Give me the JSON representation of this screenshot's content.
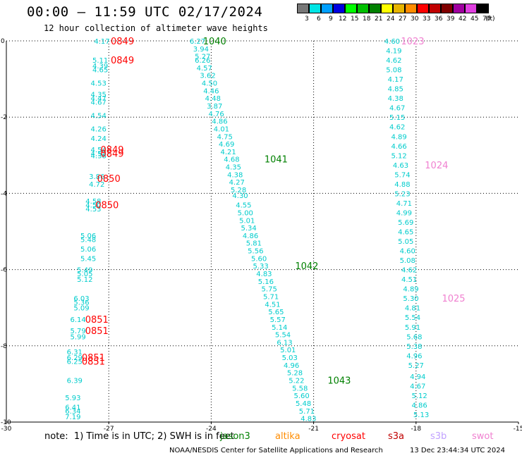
{
  "title": "00:00 – 11:59 UTC 02/17/2024",
  "subtitle": "12 hour collection of altimeter wave heights",
  "legend": {
    "unit": "(ft)",
    "bins": [
      {
        "label": "3",
        "color": "#777777"
      },
      {
        "label": "6",
        "color": "#00e5e5"
      },
      {
        "label": "9",
        "color": "#00a0ff"
      },
      {
        "label": "12",
        "color": "#0000e0"
      },
      {
        "label": "15",
        "color": "#00ff00"
      },
      {
        "label": "18",
        "color": "#00c000"
      },
      {
        "label": "21",
        "color": "#008000"
      },
      {
        "label": "24",
        "color": "#ffff00"
      },
      {
        "label": "27",
        "color": "#e6b400"
      },
      {
        "label": "30",
        "color": "#ff8c00"
      },
      {
        "label": "33",
        "color": "#ff0000"
      },
      {
        "label": "36",
        "color": "#c00000"
      },
      {
        "label": "39",
        "color": "#800000"
      },
      {
        "label": "42",
        "color": "#a000a0"
      },
      {
        "label": "45",
        "color": "#e040e0"
      },
      {
        "label": "70",
        "color": "#000000"
      }
    ]
  },
  "note": "note:  1) Time is in UTC; 2) SWH is in feet",
  "satellites": [
    {
      "name": "jason3",
      "color": "#008000"
    },
    {
      "name": "altika",
      "color": "#ff8c00"
    },
    {
      "name": "cryosat",
      "color": "#ff0000"
    },
    {
      "name": "s3a",
      "color": "#c00000"
    },
    {
      "name": "s3b",
      "color": "#c0a0ff"
    },
    {
      "name": "swot",
      "color": "#f080d0"
    }
  ],
  "footer_left": "NOAA/NESDIS Center for Satellite Applications and Research",
  "footer_right": "13 Dec 23:44:34 UTC 2024",
  "chart_data": {
    "type": "scatter",
    "xlim": [
      -30,
      -15
    ],
    "ylim": [
      -10,
      0
    ],
    "xticks": [
      "-30",
      "-27",
      "-24",
      "-21",
      "-18",
      "-15"
    ],
    "yticks": [
      "0",
      "-2",
      "-4",
      "-6",
      "-8",
      "-10"
    ],
    "grid": true,
    "wave_color": "#00cccc",
    "tracks": [
      {
        "name": "cryosat",
        "color": "#ff0000",
        "values": [
          {
            "x": -27.2,
            "y": 0.0,
            "v": "4.17"
          },
          {
            "x": -27.25,
            "y": -0.5,
            "v": "5.11"
          },
          {
            "x": -27.25,
            "y": -0.65,
            "v": "4.39"
          },
          {
            "x": -27.25,
            "y": -0.75,
            "v": "4.65"
          },
          {
            "x": -27.3,
            "y": -1.1,
            "v": "4.53"
          },
          {
            "x": -27.3,
            "y": -1.4,
            "v": "4.35"
          },
          {
            "x": -27.3,
            "y": -1.5,
            "v": "4.47"
          },
          {
            "x": -27.3,
            "y": -1.6,
            "v": "4.67"
          },
          {
            "x": -27.3,
            "y": -1.95,
            "v": "4.54"
          },
          {
            "x": -27.3,
            "y": -2.3,
            "v": "4.26"
          },
          {
            "x": -27.3,
            "y": -2.55,
            "v": "4.24"
          },
          {
            "x": -27.3,
            "y": -2.85,
            "v": "4.54"
          },
          {
            "x": -27.3,
            "y": -2.95,
            "v": "4.52"
          },
          {
            "x": -27.3,
            "y": -3.0,
            "v": "4.38"
          },
          {
            "x": -27.35,
            "y": -3.55,
            "v": "3.86"
          },
          {
            "x": -27.35,
            "y": -3.75,
            "v": "4.72"
          },
          {
            "x": -27.45,
            "y": -4.2,
            "v": "4.58"
          },
          {
            "x": -27.45,
            "y": -4.3,
            "v": "4.50"
          },
          {
            "x": -27.45,
            "y": -4.4,
            "v": "4.53"
          },
          {
            "x": -27.6,
            "y": -5.1,
            "v": "5.06"
          },
          {
            "x": -27.6,
            "y": -5.2,
            "v": "5.48"
          },
          {
            "x": -27.6,
            "y": -5.45,
            "v": "5.06"
          },
          {
            "x": -27.6,
            "y": -5.7,
            "v": "5.45"
          },
          {
            "x": -27.7,
            "y": -6.0,
            "v": "5.49"
          },
          {
            "x": -27.7,
            "y": -6.1,
            "v": "5.05"
          },
          {
            "x": -27.7,
            "y": -6.25,
            "v": "5.12"
          },
          {
            "x": -27.8,
            "y": -6.75,
            "v": "6.03"
          },
          {
            "x": -27.8,
            "y": -6.85,
            "v": "5.36"
          },
          {
            "x": -27.8,
            "y": -7.0,
            "v": "5.09"
          },
          {
            "x": -27.9,
            "y": -7.3,
            "v": "6.14"
          },
          {
            "x": -27.9,
            "y": -7.6,
            "v": "5.79"
          },
          {
            "x": -27.9,
            "y": -7.75,
            "v": "5.99"
          },
          {
            "x": -28.0,
            "y": -8.15,
            "v": "6.31"
          },
          {
            "x": -28.0,
            "y": -8.3,
            "v": "6.29"
          },
          {
            "x": -28.0,
            "y": -8.4,
            "v": "6.25"
          },
          {
            "x": -28.0,
            "y": -8.9,
            "v": "6.39"
          },
          {
            "x": -28.05,
            "y": -9.35,
            "v": "5.93"
          },
          {
            "x": -28.05,
            "y": -9.6,
            "v": "6.41"
          },
          {
            "x": -28.05,
            "y": -9.7,
            "v": "6.34"
          },
          {
            "x": -28.05,
            "y": -9.85,
            "v": "7.19"
          }
        ],
        "times": [
          {
            "x": -26.6,
            "y": 0.0,
            "v": "0849"
          },
          {
            "x": -26.6,
            "y": -0.5,
            "v": "0849"
          },
          {
            "x": -26.9,
            "y": -2.85,
            "v": "0849"
          },
          {
            "x": -26.9,
            "y": -2.95,
            "v": "0849"
          },
          {
            "x": -27.0,
            "y": -3.6,
            "v": "0850"
          },
          {
            "x": -27.05,
            "y": -4.3,
            "v": "0850"
          },
          {
            "x": -27.35,
            "y": -7.3,
            "v": "0851"
          },
          {
            "x": -27.35,
            "y": -7.6,
            "v": "0851"
          },
          {
            "x": -27.45,
            "y": -8.3,
            "v": "0851"
          },
          {
            "x": -27.45,
            "y": -8.4,
            "v": "0851"
          }
        ]
      },
      {
        "name": "jason3",
        "color": "#008000",
        "values": [
          {
            "x": -24.4,
            "y": 0.0,
            "v": "6.27"
          },
          {
            "x": -24.3,
            "y": -0.2,
            "v": "3.94"
          },
          {
            "x": -24.25,
            "y": -0.4,
            "v": "5.27"
          },
          {
            "x": -24.25,
            "y": -0.5,
            "v": "6.26"
          },
          {
            "x": -24.2,
            "y": -0.7,
            "v": "4.57"
          },
          {
            "x": -24.1,
            "y": -0.9,
            "v": "3.62"
          },
          {
            "x": -24.05,
            "y": -1.1,
            "v": "4.50"
          },
          {
            "x": -24.0,
            "y": -1.3,
            "v": "4.46"
          },
          {
            "x": -23.95,
            "y": -1.5,
            "v": "4.48"
          },
          {
            "x": -23.9,
            "y": -1.7,
            "v": "3.87"
          },
          {
            "x": -23.85,
            "y": -1.9,
            "v": "4.76"
          },
          {
            "x": -23.75,
            "y": -2.1,
            "v": "4.86"
          },
          {
            "x": -23.7,
            "y": -2.3,
            "v": "4.01"
          },
          {
            "x": -23.6,
            "y": -2.5,
            "v": "4.75"
          },
          {
            "x": -23.55,
            "y": -2.7,
            "v": "4.69"
          },
          {
            "x": -23.5,
            "y": -2.9,
            "v": "4.21"
          },
          {
            "x": -23.4,
            "y": -3.1,
            "v": "4.68"
          },
          {
            "x": -23.35,
            "y": -3.3,
            "v": "4.35"
          },
          {
            "x": -23.3,
            "y": -3.5,
            "v": "4.38"
          },
          {
            "x": -23.25,
            "y": -3.7,
            "v": "4.27"
          },
          {
            "x": -23.2,
            "y": -3.9,
            "v": "5.28"
          },
          {
            "x": -23.15,
            "y": -4.05,
            "v": "4.30"
          },
          {
            "x": -23.05,
            "y": -4.3,
            "v": "4.55"
          },
          {
            "x": -23.0,
            "y": -4.5,
            "v": "5.00"
          },
          {
            "x": -22.95,
            "y": -4.7,
            "v": "5.01"
          },
          {
            "x": -22.9,
            "y": -4.9,
            "v": "5.34"
          },
          {
            "x": -22.85,
            "y": -5.1,
            "v": "4.86"
          },
          {
            "x": -22.75,
            "y": -5.3,
            "v": "5.81"
          },
          {
            "x": -22.7,
            "y": -5.5,
            "v": "5.56"
          },
          {
            "x": -22.6,
            "y": -5.7,
            "v": "5.60"
          },
          {
            "x": -22.55,
            "y": -5.9,
            "v": "5.33"
          },
          {
            "x": -22.45,
            "y": -6.1,
            "v": "4.83"
          },
          {
            "x": -22.4,
            "y": -6.3,
            "v": "5.16"
          },
          {
            "x": -22.3,
            "y": -6.5,
            "v": "5.75"
          },
          {
            "x": -22.25,
            "y": -6.7,
            "v": "5.71"
          },
          {
            "x": -22.2,
            "y": -6.9,
            "v": "4.51"
          },
          {
            "x": -22.1,
            "y": -7.1,
            "v": "5.65"
          },
          {
            "x": -22.05,
            "y": -7.3,
            "v": "5.57"
          },
          {
            "x": -22.0,
            "y": -7.5,
            "v": "5.14"
          },
          {
            "x": -21.9,
            "y": -7.7,
            "v": "5.54"
          },
          {
            "x": -21.85,
            "y": -7.9,
            "v": "6.13"
          },
          {
            "x": -21.75,
            "y": -8.1,
            "v": "5.01"
          },
          {
            "x": -21.7,
            "y": -8.3,
            "v": "5.03"
          },
          {
            "x": -21.65,
            "y": -8.5,
            "v": "4.96"
          },
          {
            "x": -21.55,
            "y": -8.7,
            "v": "5.28"
          },
          {
            "x": -21.5,
            "y": -8.9,
            "v": "5.22"
          },
          {
            "x": -21.4,
            "y": -9.1,
            "v": "5.58"
          },
          {
            "x": -21.35,
            "y": -9.3,
            "v": "5.60"
          },
          {
            "x": -21.3,
            "y": -9.5,
            "v": "5.48"
          },
          {
            "x": -21.2,
            "y": -9.7,
            "v": "5.71"
          },
          {
            "x": -21.15,
            "y": -9.9,
            "v": "4.83"
          }
        ],
        "times": [
          {
            "x": -23.9,
            "y": 0.0,
            "v": "1040"
          },
          {
            "x": -22.1,
            "y": -3.1,
            "v": "1041"
          },
          {
            "x": -21.2,
            "y": -5.9,
            "v": "1042"
          },
          {
            "x": -20.25,
            "y": -8.9,
            "v": "1043"
          }
        ]
      },
      {
        "name": "swot",
        "color": "#f080d0",
        "values": [
          {
            "x": -18.7,
            "y": 0.0,
            "v": "4.60"
          },
          {
            "x": -18.65,
            "y": -0.25,
            "v": "4.19"
          },
          {
            "x": -18.65,
            "y": -0.5,
            "v": "4.62"
          },
          {
            "x": -18.65,
            "y": -0.75,
            "v": "5.08"
          },
          {
            "x": -18.6,
            "y": -1.0,
            "v": "4.17"
          },
          {
            "x": -18.6,
            "y": -1.25,
            "v": "4.85"
          },
          {
            "x": -18.6,
            "y": -1.5,
            "v": "4.38"
          },
          {
            "x": -18.55,
            "y": -1.75,
            "v": "4.67"
          },
          {
            "x": -18.55,
            "y": -2.0,
            "v": "5.15"
          },
          {
            "x": -18.55,
            "y": -2.25,
            "v": "4.62"
          },
          {
            "x": -18.5,
            "y": -2.5,
            "v": "4.89"
          },
          {
            "x": -18.5,
            "y": -2.75,
            "v": "4.66"
          },
          {
            "x": -18.5,
            "y": -3.0,
            "v": "5.12"
          },
          {
            "x": -18.45,
            "y": -3.25,
            "v": "4.63"
          },
          {
            "x": -18.4,
            "y": -3.5,
            "v": "5.74"
          },
          {
            "x": -18.4,
            "y": -3.75,
            "v": "4.88"
          },
          {
            "x": -18.4,
            "y": -4.0,
            "v": "5.23"
          },
          {
            "x": -18.35,
            "y": -4.25,
            "v": "4.71"
          },
          {
            "x": -18.35,
            "y": -4.5,
            "v": "4.99"
          },
          {
            "x": -18.3,
            "y": -4.75,
            "v": "5.69"
          },
          {
            "x": -18.3,
            "y": -5.0,
            "v": "4.65"
          },
          {
            "x": -18.3,
            "y": -5.25,
            "v": "5.05"
          },
          {
            "x": -18.25,
            "y": -5.5,
            "v": "4.60"
          },
          {
            "x": -18.25,
            "y": -5.75,
            "v": "5.08"
          },
          {
            "x": -18.2,
            "y": -6.0,
            "v": "4.62"
          },
          {
            "x": -18.2,
            "y": -6.25,
            "v": "4.51"
          },
          {
            "x": -18.15,
            "y": -6.5,
            "v": "4.89"
          },
          {
            "x": -18.15,
            "y": -6.75,
            "v": "5.30"
          },
          {
            "x": -18.1,
            "y": -7.0,
            "v": "4.81"
          },
          {
            "x": -18.1,
            "y": -7.25,
            "v": "5.54"
          },
          {
            "x": -18.1,
            "y": -7.5,
            "v": "5.91"
          },
          {
            "x": -18.05,
            "y": -7.75,
            "v": "5.68"
          },
          {
            "x": -18.05,
            "y": -8.0,
            "v": "5.38"
          },
          {
            "x": -18.05,
            "y": -8.25,
            "v": "4.96"
          },
          {
            "x": -18.0,
            "y": -8.5,
            "v": "5.27"
          },
          {
            "x": -17.95,
            "y": -8.8,
            "v": "4.94"
          },
          {
            "x": -17.95,
            "y": -9.05,
            "v": "4.67"
          },
          {
            "x": -17.9,
            "y": -9.3,
            "v": "5.12"
          },
          {
            "x": -17.9,
            "y": -9.55,
            "v": "4.86"
          },
          {
            "x": -17.85,
            "y": -9.8,
            "v": "5.13"
          }
        ],
        "times": [
          {
            "x": -18.1,
            "y": 0.0,
            "v": "1023"
          },
          {
            "x": -17.4,
            "y": -3.25,
            "v": "1024"
          },
          {
            "x": -16.9,
            "y": -6.75,
            "v": "1025"
          }
        ]
      }
    ]
  }
}
